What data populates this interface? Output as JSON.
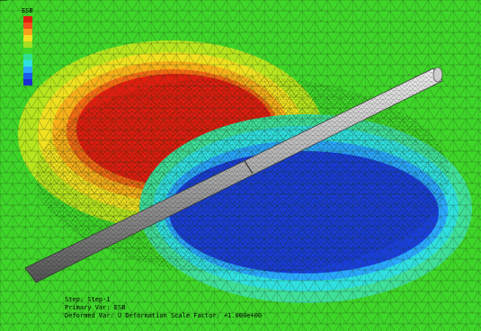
{
  "legend": {
    "title": "ESB"
  },
  "info": {
    "lines": [
      "Step: Step-1",
      "Primary Var: ESB",
      "Deformed Var: U   Deformation Scale Factor: +1.000e+00"
    ]
  }
}
